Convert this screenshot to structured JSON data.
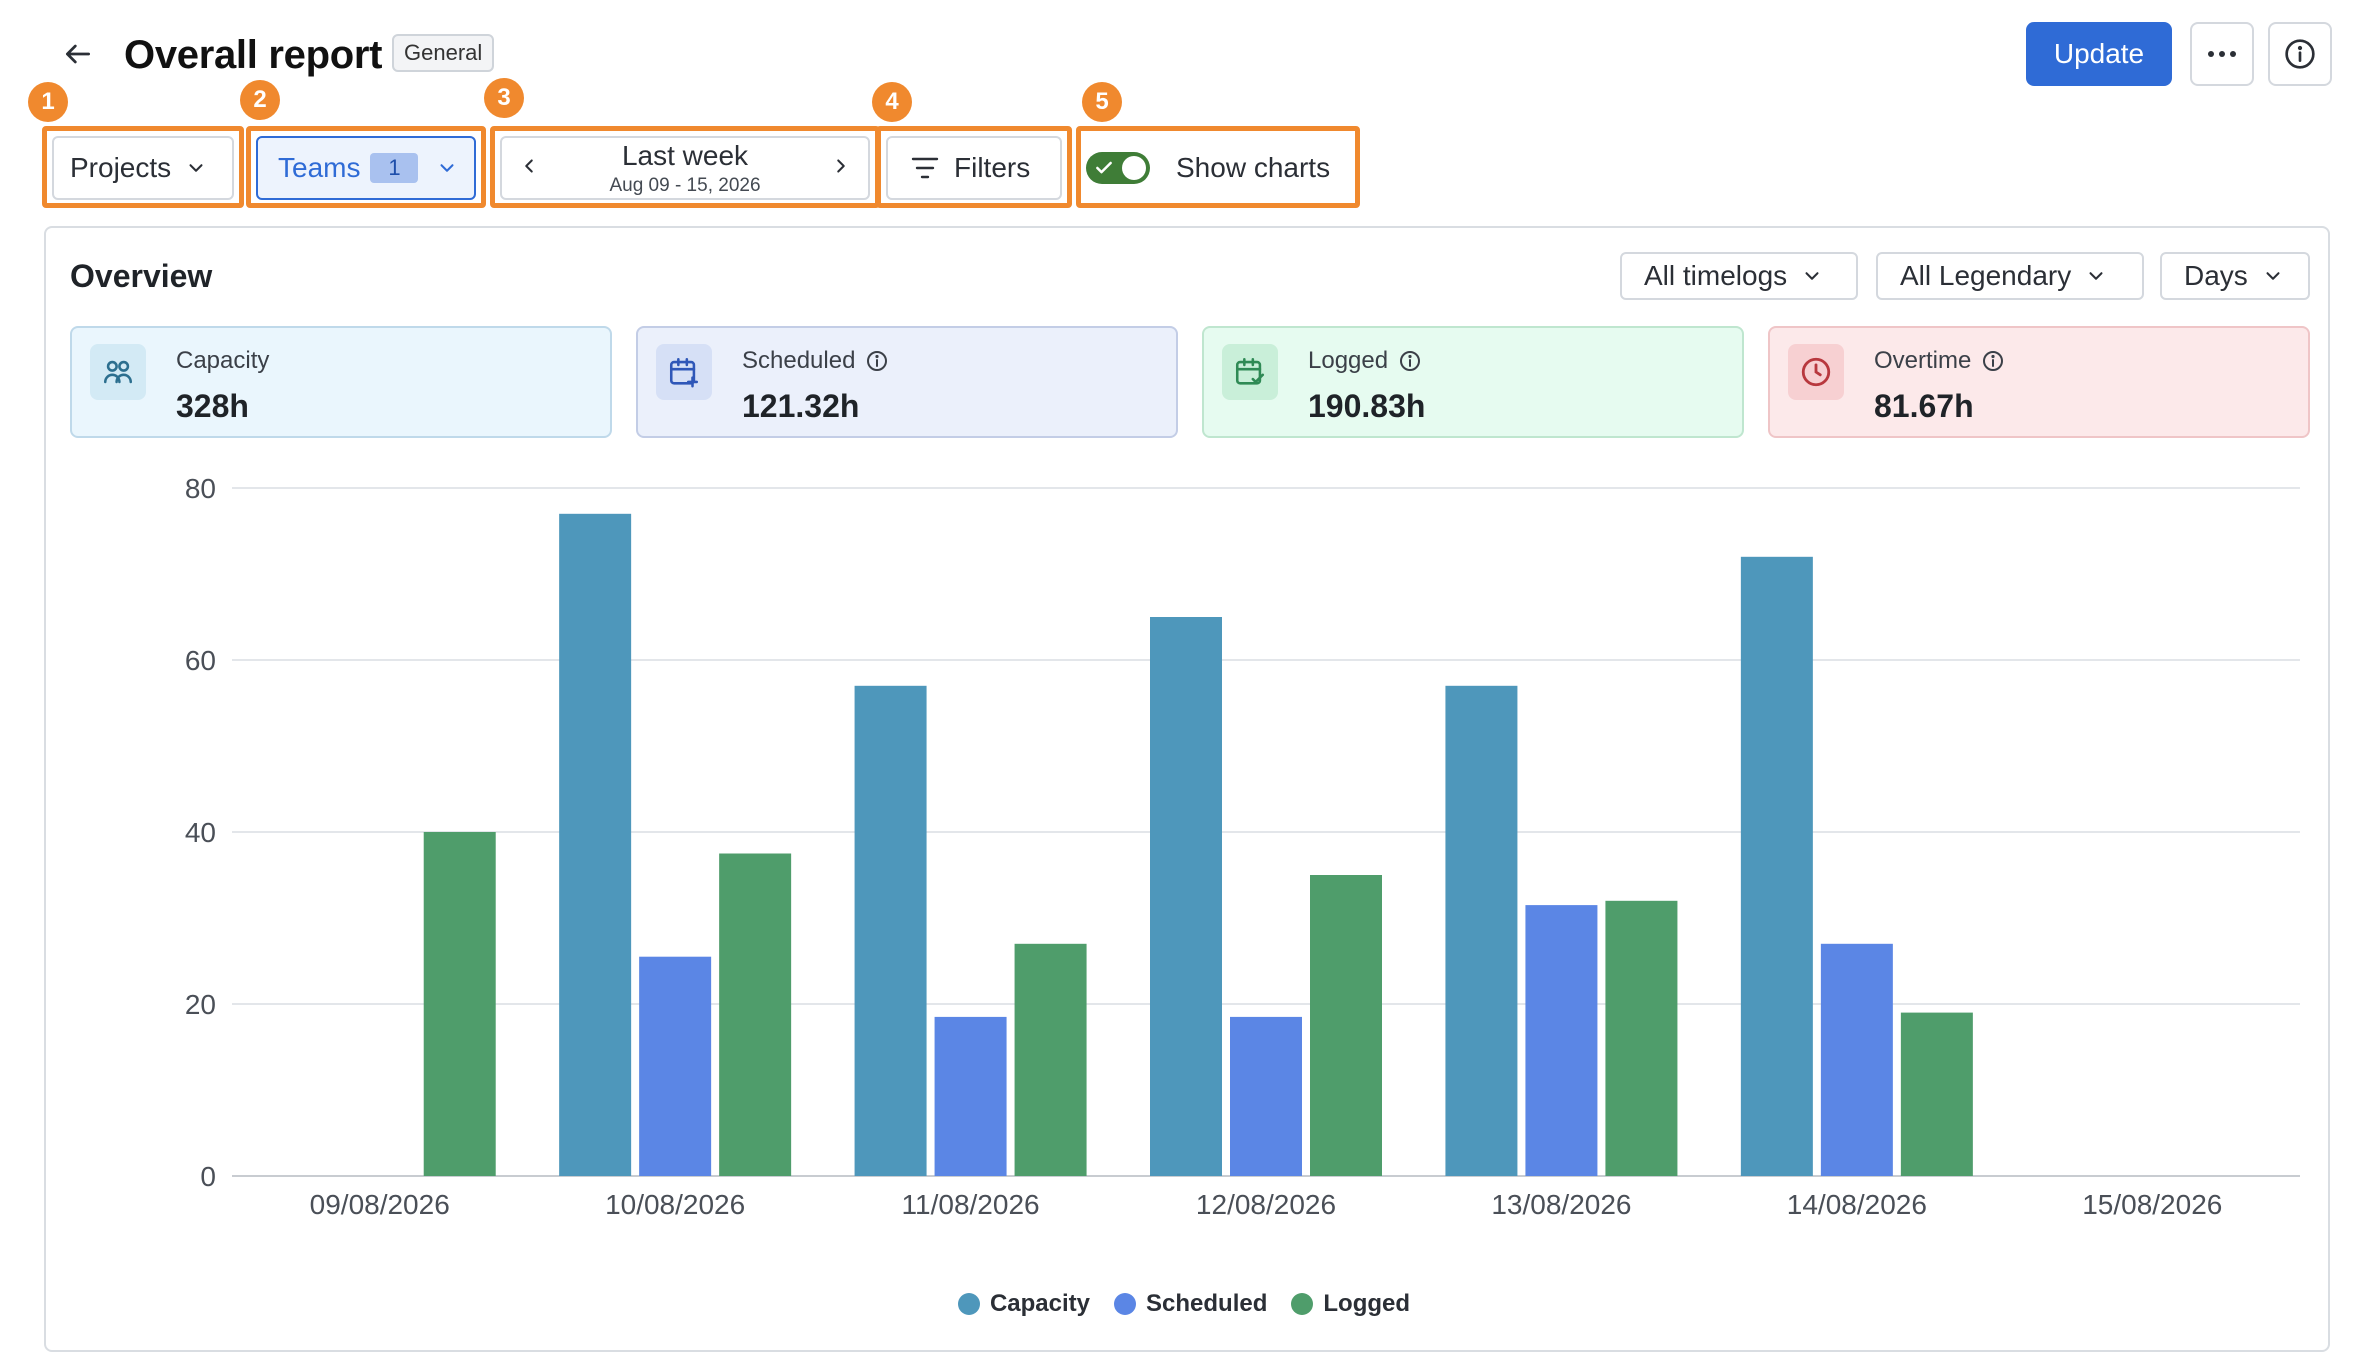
{
  "header": {
    "title": "Overall report",
    "badge": "General",
    "update_label": "Update"
  },
  "toolbar": {
    "projects_label": "Projects",
    "teams_label": "Teams",
    "teams_count": "1",
    "date_main": "Last week",
    "date_sub": "Aug 09 - 15, 2026",
    "filters_label": "Filters",
    "show_charts_label": "Show charts",
    "show_charts_on": true
  },
  "markers": [
    "1",
    "2",
    "3",
    "4",
    "5"
  ],
  "overview": {
    "title": "Overview",
    "dropdowns": {
      "timelogs": "All timelogs",
      "legendary": "All Legendary",
      "granularity": "Days"
    },
    "cards": {
      "capacity": {
        "label": "Capacity",
        "value": "328h",
        "icon": "people-icon"
      },
      "scheduled": {
        "label": "Scheduled",
        "value": "121.32h",
        "icon": "calendar-plus-icon"
      },
      "logged": {
        "label": "Logged",
        "value": "190.83h",
        "icon": "calendar-check-icon"
      },
      "overtime": {
        "label": "Overtime",
        "value": "81.67h",
        "icon": "clock-icon"
      }
    }
  },
  "colors": {
    "capacity": "#4e97bb",
    "scheduled": "#5b86e5",
    "logged": "#4f9d6b",
    "accent": "#2f6bd6",
    "annotation": "#f0892e"
  },
  "chart_data": {
    "type": "bar",
    "categories": [
      "09/08/2026",
      "10/08/2026",
      "11/08/2026",
      "12/08/2026",
      "13/08/2026",
      "14/08/2026",
      "15/08/2026"
    ],
    "series": [
      {
        "name": "Capacity",
        "values": [
          0,
          77,
          57,
          65,
          57,
          72,
          0
        ]
      },
      {
        "name": "Scheduled",
        "values": [
          0,
          25.5,
          18.5,
          18.5,
          31.5,
          27,
          0
        ]
      },
      {
        "name": "Logged",
        "values": [
          40,
          37.5,
          27,
          35,
          32,
          19,
          0
        ]
      }
    ],
    "ylim": [
      0,
      80
    ],
    "yticks": [
      "0",
      "20",
      "40",
      "60",
      "80"
    ],
    "grid": true,
    "legend": "bottom-center"
  }
}
